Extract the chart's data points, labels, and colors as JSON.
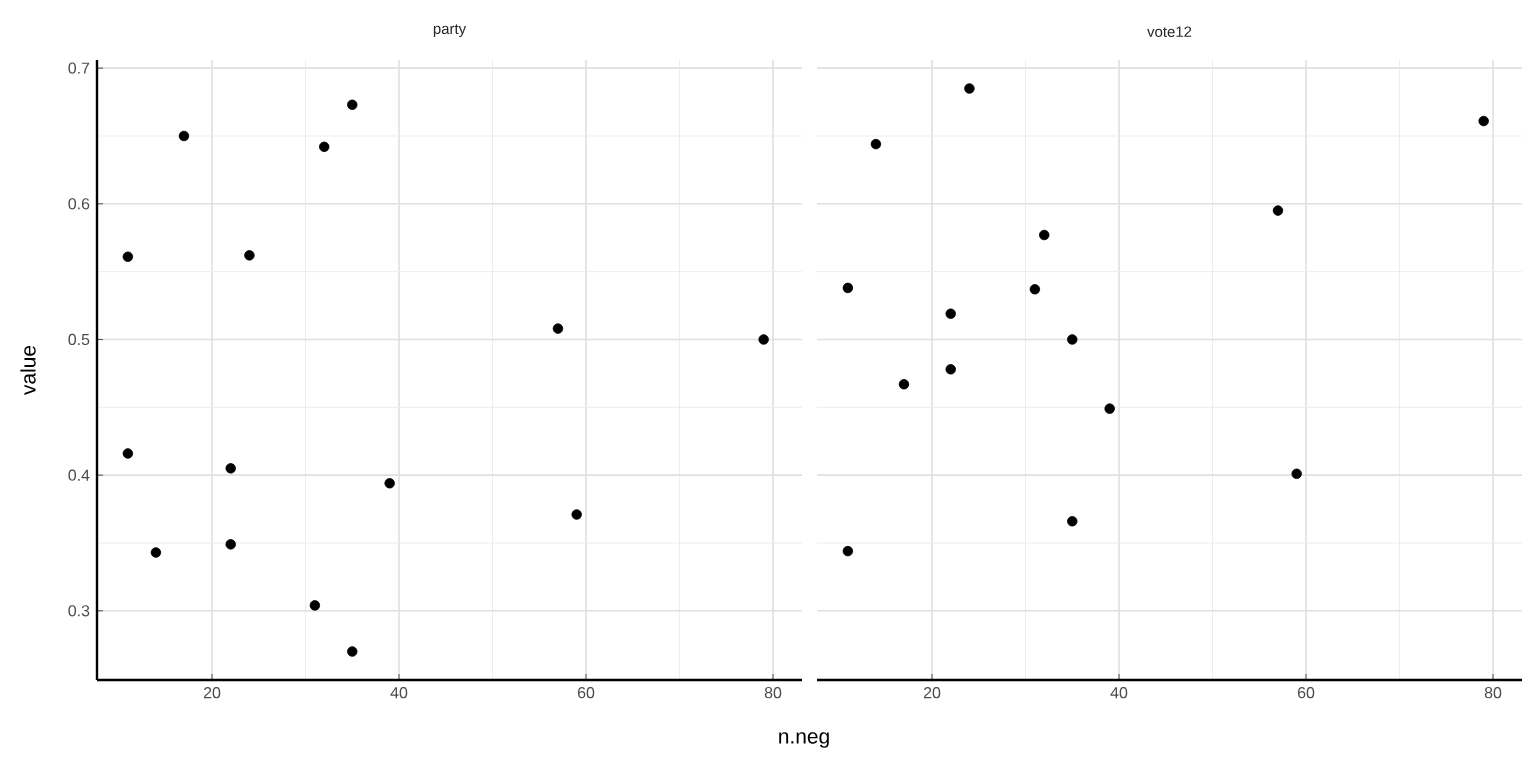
{
  "chart_data": [
    {
      "type": "scatter",
      "title": "party",
      "xlabel": "n.neg",
      "ylabel": "value",
      "x": [
        11,
        17,
        35,
        32,
        24,
        57,
        79,
        11,
        22,
        39,
        59,
        14,
        22,
        31,
        35
      ],
      "values": [
        0.561,
        0.65,
        0.673,
        0.642,
        0.562,
        0.508,
        0.5,
        0.416,
        0.405,
        0.394,
        0.371,
        0.343,
        0.349,
        0.304,
        0.27
      ],
      "color": "#000000",
      "marker": "circle",
      "grid": true,
      "xlim": [
        7.7,
        83.1
      ],
      "ylim": [
        0.249,
        0.706
      ],
      "xticks": [
        20,
        40,
        60,
        80
      ],
      "yticks": [
        0.3,
        0.4,
        0.5,
        0.6,
        0.7
      ]
    },
    {
      "type": "scatter",
      "title": "vote12",
      "x": [
        24,
        14,
        57,
        32,
        11,
        31,
        22,
        35,
        17,
        22,
        39,
        59,
        35,
        11,
        79
      ],
      "values": [
        0.685,
        0.644,
        0.595,
        0.577,
        0.538,
        0.537,
        0.519,
        0.5,
        0.467,
        0.478,
        0.449,
        0.401,
        0.366,
        0.344,
        0.661
      ],
      "color": "#000000",
      "marker": "circle",
      "grid": true,
      "tick_labels": "x",
      "xlim": [
        7.7,
        83.1
      ],
      "ylim": [
        0.249,
        0.706
      ],
      "xticks": [
        20,
        40,
        60,
        80
      ],
      "yticks": [
        0.3,
        0.4,
        0.5,
        0.6,
        0.7
      ]
    }
  ]
}
